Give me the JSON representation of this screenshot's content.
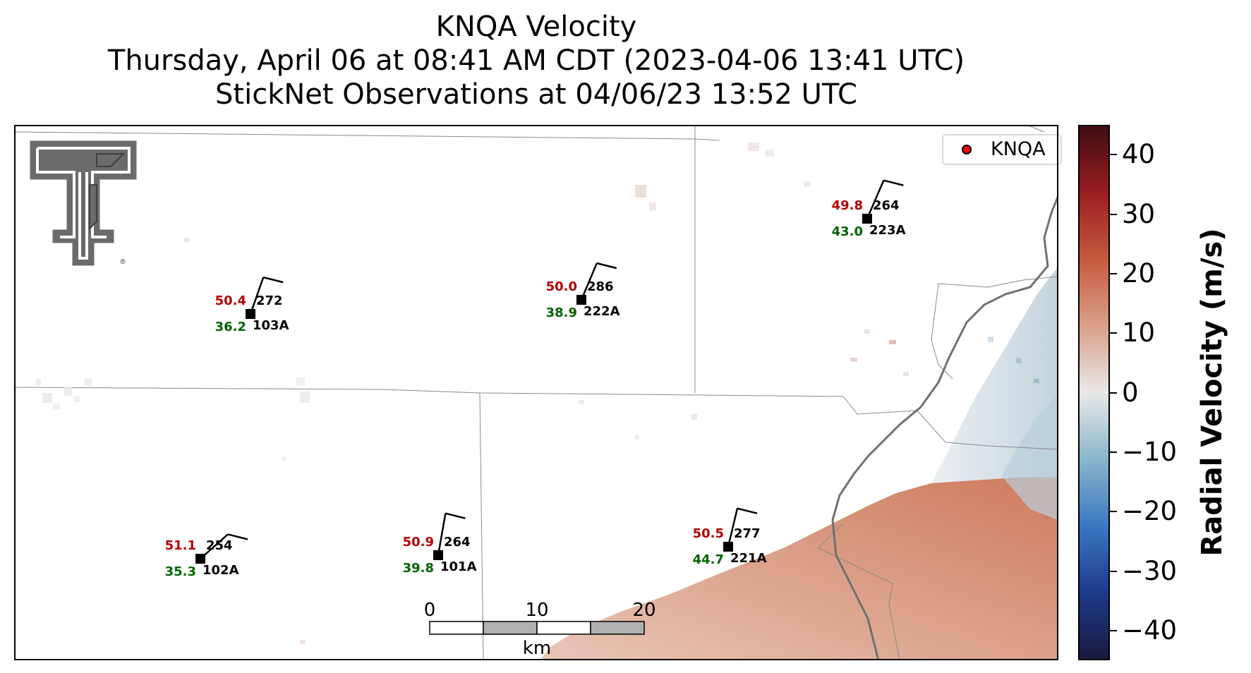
{
  "title": {
    "line1": "KNQA Velocity",
    "line2": "Thursday, April 06 at 08:41 AM CDT (2023-04-06 13:41 UTC)",
    "line3": "StickNet Observations at 04/06/23 13:52 UTC"
  },
  "legend": {
    "label": "KNQA",
    "marker_color": "#ff0000"
  },
  "colorbar": {
    "title": "Radial Velocity (m/s)",
    "ticks": [
      "40",
      "30",
      "20",
      "10",
      "0",
      "−10",
      "−20",
      "−30",
      "−40"
    ],
    "tick_values": [
      40,
      30,
      20,
      10,
      0,
      -10,
      -20,
      -30,
      -40
    ],
    "range": [
      -45,
      45
    ],
    "colors": [
      "#1a1a3e",
      "#1e3a8a",
      "#3a78c0",
      "#8ab6cc",
      "#e8e8e8",
      "#d9a08a",
      "#c55a3e",
      "#9a1e22",
      "#3f0d12"
    ]
  },
  "scale_bar": {
    "labels": [
      "0",
      "10",
      "20"
    ],
    "unit": "km"
  },
  "stations": [
    {
      "id": "103A",
      "temp": "50.4",
      "dew": "36.2",
      "dir": "272"
    },
    {
      "id": "222A",
      "temp": "50.0",
      "dew": "38.9",
      "dir": "286"
    },
    {
      "id": "223A",
      "temp": "49.8",
      "dew": "43.0",
      "dir": "264"
    },
    {
      "id": "102A",
      "temp": "51.1",
      "dew": "35.3",
      "dir": "254"
    },
    {
      "id": "101A",
      "temp": "50.9",
      "dew": "39.8",
      "dir": "264"
    },
    {
      "id": "221A",
      "temp": "50.5",
      "dew": "44.7",
      "dir": "277"
    }
  ],
  "colors": {
    "temp_text": "#b40000",
    "dew_text": "#006400",
    "station_marker": "#000000"
  }
}
